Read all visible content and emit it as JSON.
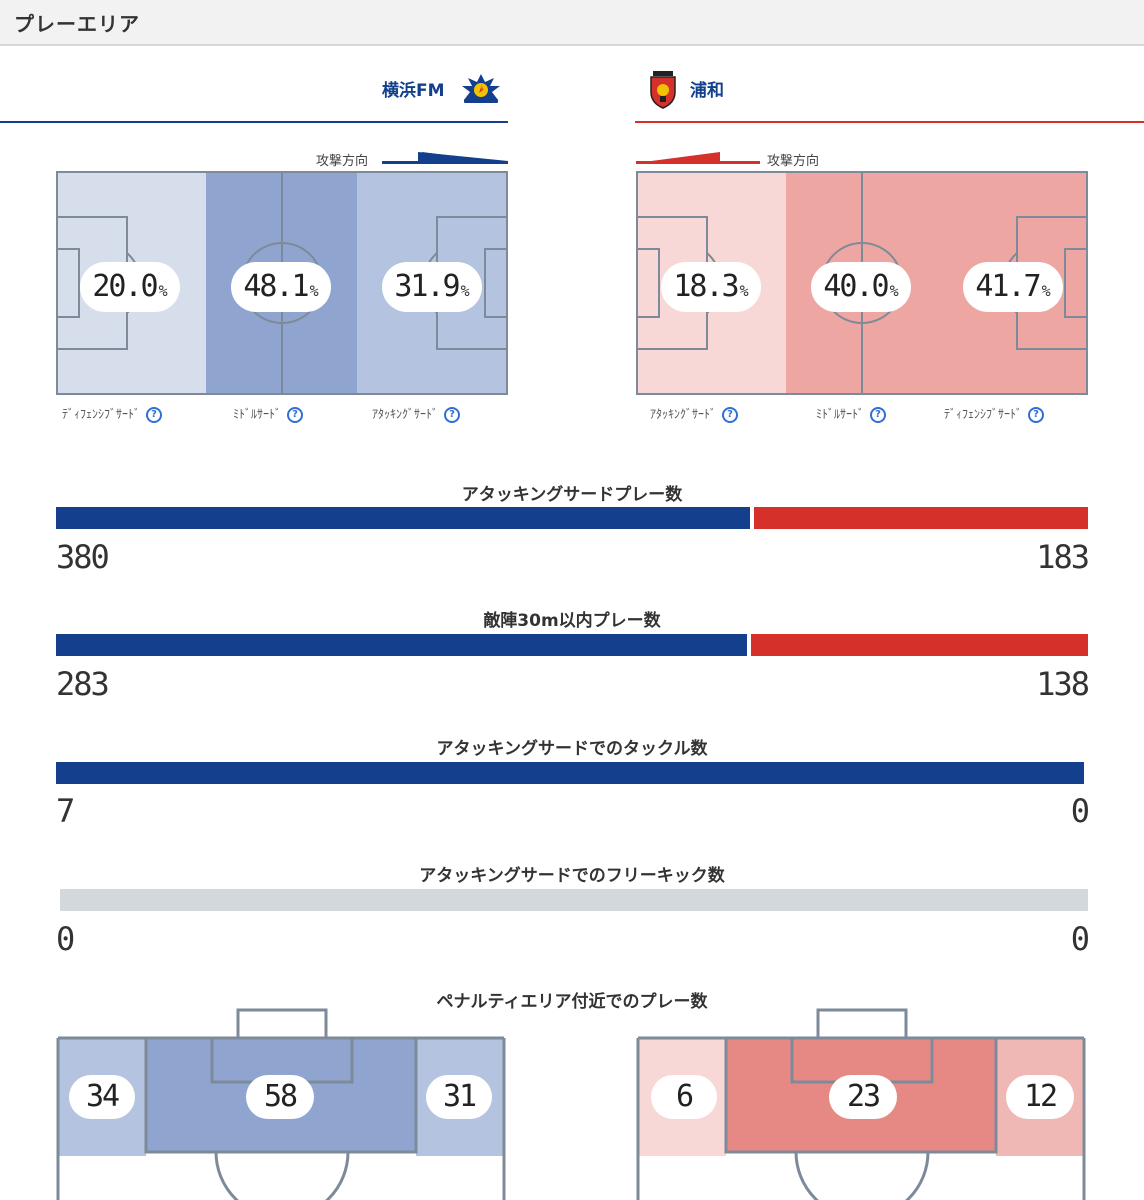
{
  "section": {
    "title": "プレーエリア"
  },
  "teams": {
    "home": {
      "name": "横浜FM",
      "color": "#133f8c",
      "logo": "yokohama-fm-crest"
    },
    "away": {
      "name": "浦和",
      "color": "#d6302b",
      "logo": "urawa-crest"
    }
  },
  "attack_direction_label": "攻撃方向",
  "home_zones": [
    {
      "label": "ﾃﾞｨﾌｪﾝｼﾌﾞｻｰﾄﾞ",
      "value": "20.0",
      "unit": "%"
    },
    {
      "label": "ﾐﾄﾞﾙｻｰﾄﾞ",
      "value": "48.1",
      "unit": "%"
    },
    {
      "label": "ｱﾀｯｷﾝｸﾞｻｰﾄﾞ",
      "value": "31.9",
      "unit": "%"
    }
  ],
  "away_zones": [
    {
      "label": "ｱﾀｯｷﾝｸﾞｻｰﾄﾞ",
      "value": "18.3",
      "unit": "%"
    },
    {
      "label": "ﾐﾄﾞﾙｻｰﾄﾞ",
      "value": "40.0",
      "unit": "%"
    },
    {
      "label": "ﾃﾞｨﾌｪﾝｼﾌﾞｻｰﾄﾞ",
      "value": "41.7",
      "unit": "%"
    }
  ],
  "stats": [
    {
      "title": "アタッキングサードプレー数",
      "home": "380",
      "away": "183"
    },
    {
      "title": "敵陣30m以内プレー数",
      "home": "283",
      "away": "138"
    },
    {
      "title": "アタッキングサードでのタックル数",
      "home": "7",
      "away": "0"
    },
    {
      "title": "アタッキングサードでのフリーキック数",
      "home": "0",
      "away": "0"
    }
  ],
  "penalty": {
    "title": "ペナルティエリア付近でのプレー数",
    "home": {
      "left": "34",
      "center": "58",
      "right": "31"
    },
    "away": {
      "left": "6",
      "center": "23",
      "right": "12"
    }
  },
  "colors": {
    "home_bar": "#133f8c",
    "away_bar": "#d6302b",
    "empty_bar": "#d3d8dc",
    "home_shade_light": "#d7deeb",
    "home_shade_mid": "#b4c3df",
    "home_shade_dark": "#8fa5cf",
    "away_shade_light": "#f8d8d6",
    "away_shade_mid": "#eea6a3",
    "away_shade_dark": "#e68985"
  }
}
